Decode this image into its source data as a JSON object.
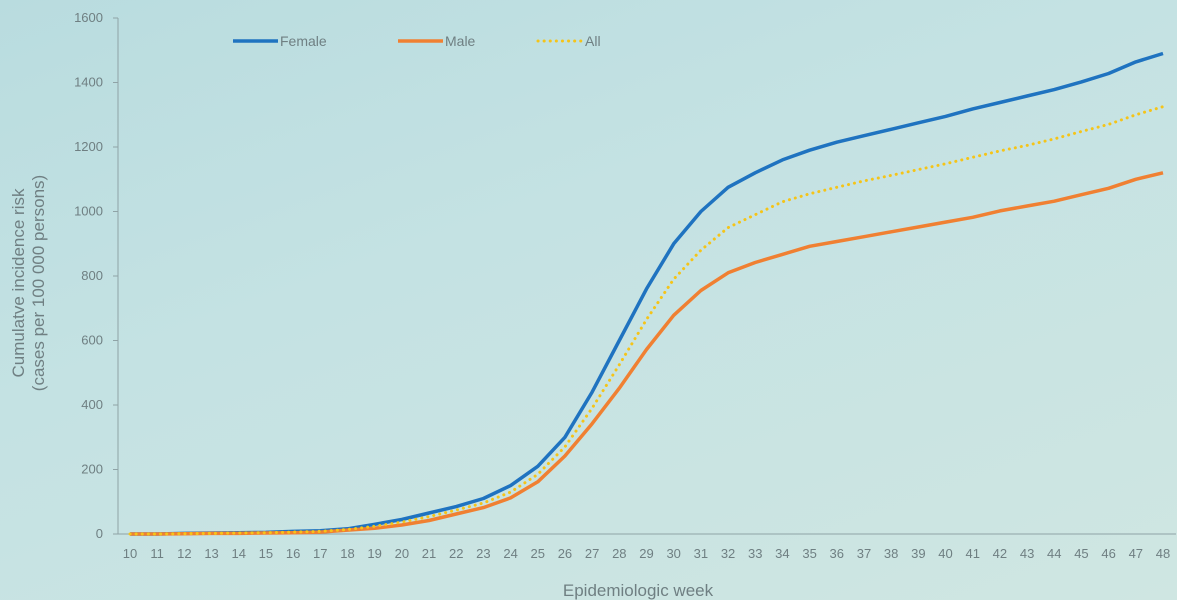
{
  "chart_data": {
    "type": "line",
    "xlabel": "Epidemiologic week",
    "ylabel_line1": "Cumulatve incidence risk",
    "ylabel_line2": "(cases per 100 000 persons)",
    "ylim": [
      0,
      1600
    ],
    "yticks": [
      0,
      200,
      400,
      600,
      800,
      1000,
      1200,
      1400,
      1600
    ],
    "categories": [
      "10",
      "11",
      "12",
      "13",
      "14",
      "15",
      "16",
      "17",
      "18",
      "19",
      "20",
      "21",
      "22",
      "23",
      "24",
      "25",
      "26",
      "27",
      "28",
      "29",
      "30",
      "31",
      "32",
      "33",
      "34",
      "35",
      "36",
      "37",
      "38",
      "39",
      "40",
      "41",
      "42",
      "43",
      "44",
      "45",
      "46",
      "47",
      "48"
    ],
    "legend_position": "top-left",
    "grid": false,
    "series": [
      {
        "name": "Female",
        "color": "#1f73c0",
        "style": "solid",
        "values": [
          0,
          0,
          2,
          3,
          4,
          5,
          8,
          10,
          16,
          30,
          45,
          65,
          85,
          110,
          150,
          210,
          300,
          440,
          600,
          760,
          900,
          1000,
          1075,
          1120,
          1160,
          1190,
          1215,
          1235,
          1255,
          1275,
          1295,
          1318,
          1338,
          1358,
          1378,
          1402,
          1428,
          1464,
          1490
        ]
      },
      {
        "name": "Male",
        "color": "#f08032",
        "style": "solid",
        "values": [
          0,
          0,
          1,
          2,
          2,
          3,
          4,
          6,
          12,
          18,
          28,
          42,
          62,
          82,
          112,
          162,
          242,
          342,
          452,
          572,
          678,
          755,
          810,
          842,
          867,
          892,
          907,
          922,
          937,
          952,
          967,
          982,
          1002,
          1017,
          1032,
          1052,
          1072,
          1100,
          1120
        ]
      },
      {
        "name": "All",
        "color": "#f5c418",
        "style": "dotted",
        "values": [
          0,
          0,
          1,
          2,
          3,
          4,
          6,
          8,
          14,
          24,
          37,
          54,
          74,
          96,
          130,
          185,
          270,
          390,
          525,
          665,
          790,
          880,
          950,
          990,
          1030,
          1055,
          1075,
          1095,
          1112,
          1130,
          1148,
          1168,
          1188,
          1205,
          1225,
          1248,
          1270,
          1300,
          1325
        ]
      }
    ]
  }
}
